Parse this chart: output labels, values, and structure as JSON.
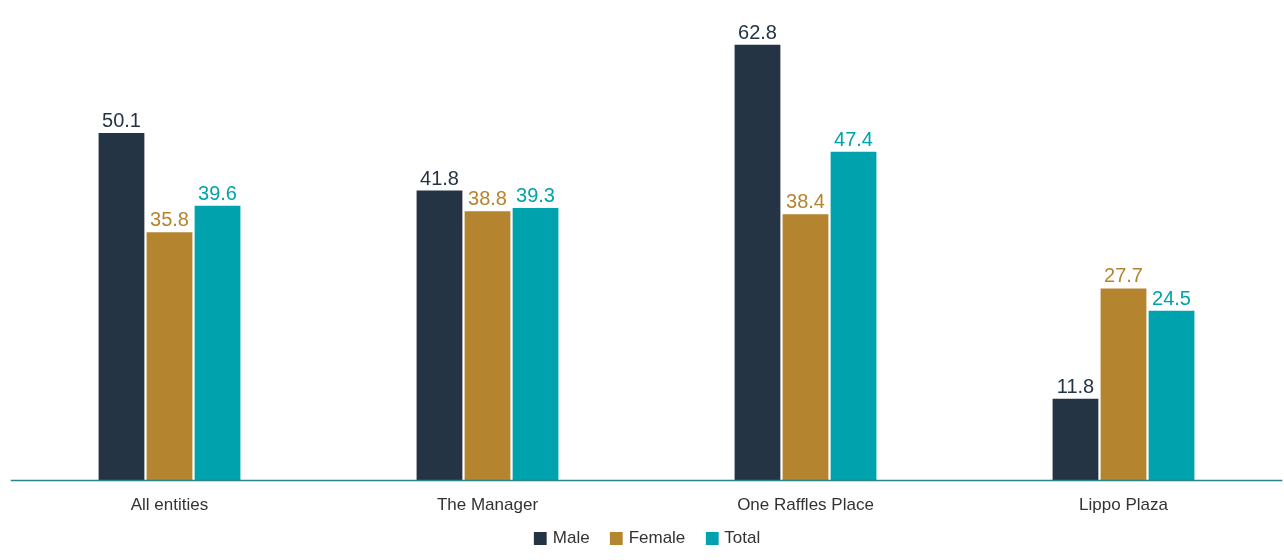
{
  "chart_data": {
    "type": "bar",
    "categories": [
      "All entities",
      "The Manager",
      "One Raffles Place",
      "Lippo Plaza"
    ],
    "series": [
      {
        "name": "Male",
        "color": "#253445",
        "values": [
          50.1,
          41.8,
          62.8,
          11.8
        ]
      },
      {
        "name": "Female",
        "color": "#b5842e",
        "values": [
          35.8,
          38.8,
          38.4,
          27.7
        ]
      },
      {
        "name": "Total",
        "color": "#00a2ad",
        "values": [
          39.6,
          39.3,
          47.4,
          24.5
        ]
      }
    ],
    "data_labels": true,
    "grid": false,
    "legend": "bottom"
  }
}
